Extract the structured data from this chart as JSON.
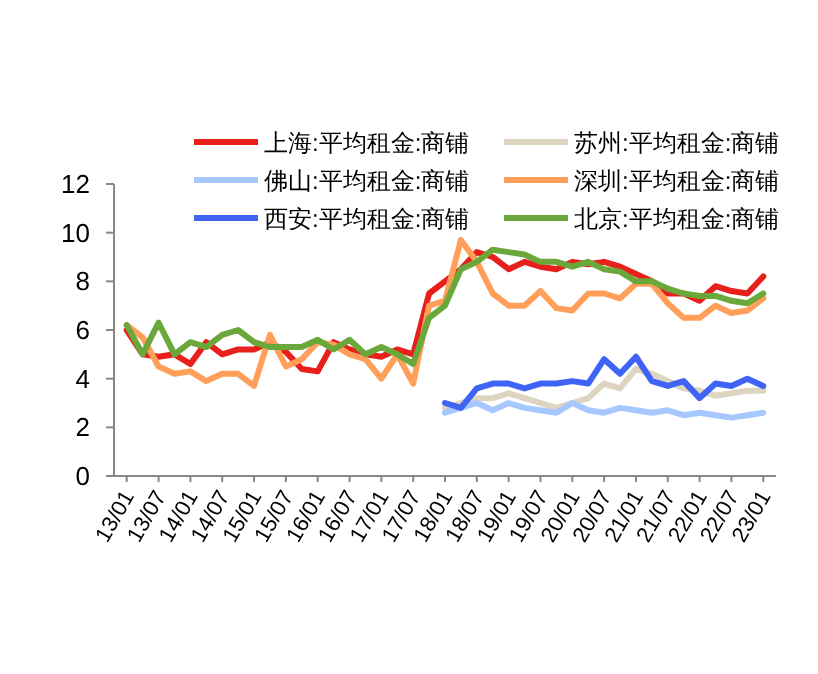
{
  "chart_data": {
    "type": "line",
    "legend": "top",
    "grid": false,
    "line_style": "solid",
    "marker": "none",
    "ylim": [
      0,
      12
    ],
    "yticks": [
      0,
      2,
      4,
      6,
      8,
      10,
      12
    ],
    "categories": [
      "13/01",
      null,
      "13/07",
      null,
      "14/01",
      null,
      "14/07",
      null,
      "15/01",
      null,
      "15/07",
      null,
      "16/01",
      null,
      "16/07",
      null,
      "17/01",
      null,
      "17/07",
      null,
      "18/01",
      null,
      "18/07",
      null,
      "19/01",
      null,
      "19/07",
      null,
      "20/01",
      null,
      "20/07",
      null,
      "21/01",
      null,
      "21/07",
      null,
      "22/01",
      null,
      "22/07",
      null,
      "23/01"
    ],
    "series": [
      {
        "name": "上海:平均租金:商铺",
        "color": "#e8201b",
        "values": [
          6.0,
          5.0,
          4.9,
          5.0,
          4.6,
          5.5,
          5.0,
          5.2,
          5.2,
          5.5,
          5.1,
          4.4,
          4.3,
          5.5,
          5.2,
          5.0,
          4.9,
          5.2,
          5.0,
          7.5,
          8.0,
          8.5,
          9.2,
          9.0,
          8.5,
          8.8,
          8.6,
          8.5,
          8.8,
          8.7,
          8.8,
          8.6,
          8.3,
          8.0,
          7.5,
          7.5,
          7.2,
          7.8,
          7.6,
          7.5,
          8.2
        ]
      },
      {
        "name": "苏州:平均租金:商铺",
        "color": "#ddd5c0",
        "values": [
          null,
          null,
          null,
          null,
          null,
          null,
          null,
          null,
          null,
          null,
          null,
          null,
          null,
          null,
          null,
          null,
          null,
          null,
          null,
          null,
          2.8,
          3.0,
          3.2,
          3.2,
          3.4,
          3.2,
          3.0,
          2.8,
          3.0,
          3.2,
          3.8,
          3.6,
          4.4,
          4.2,
          3.9,
          3.6,
          3.5,
          3.3,
          3.4,
          3.5,
          3.5
        ]
      },
      {
        "name": "佛山:平均租金:商铺",
        "color": "#a6c8ff",
        "values": [
          null,
          null,
          null,
          null,
          null,
          null,
          null,
          null,
          null,
          null,
          null,
          null,
          null,
          null,
          null,
          null,
          null,
          null,
          null,
          null,
          2.6,
          2.8,
          3.0,
          2.7,
          3.0,
          2.8,
          2.7,
          2.6,
          3.0,
          2.7,
          2.6,
          2.8,
          2.7,
          2.6,
          2.7,
          2.5,
          2.6,
          2.5,
          2.4,
          2.5,
          2.6
        ]
      },
      {
        "name": "深圳:平均租金:商铺",
        "color": "#ff9f5a",
        "values": [
          6.2,
          5.7,
          4.5,
          4.2,
          4.3,
          3.9,
          4.2,
          4.2,
          3.7,
          5.8,
          4.5,
          4.8,
          5.5,
          5.4,
          5.0,
          4.8,
          4.0,
          5.0,
          3.8,
          7.0,
          7.2,
          9.7,
          8.8,
          7.5,
          7.0,
          7.0,
          7.6,
          6.9,
          6.8,
          7.5,
          7.5,
          7.3,
          7.9,
          7.9,
          7.1,
          6.5,
          6.5,
          7.0,
          6.7,
          6.8,
          7.3
        ]
      },
      {
        "name": "西安:平均租金:商铺",
        "color": "#3f63f5",
        "values": [
          null,
          null,
          null,
          null,
          null,
          null,
          null,
          null,
          null,
          null,
          null,
          null,
          null,
          null,
          null,
          null,
          null,
          null,
          null,
          null,
          3.0,
          2.8,
          3.6,
          3.8,
          3.8,
          3.6,
          3.8,
          3.8,
          3.9,
          3.8,
          4.8,
          4.2,
          4.9,
          3.9,
          3.7,
          3.9,
          3.2,
          3.8,
          3.7,
          4.0,
          3.7
        ]
      },
      {
        "name": "北京:平均租金:商铺",
        "color": "#6aa83c",
        "values": [
          6.2,
          5.0,
          6.3,
          5.0,
          5.5,
          5.3,
          5.8,
          6.0,
          5.5,
          5.3,
          5.3,
          5.3,
          5.6,
          5.2,
          5.6,
          5.0,
          5.3,
          5.0,
          4.6,
          6.5,
          7.0,
          8.5,
          8.8,
          9.3,
          9.2,
          9.1,
          8.8,
          8.8,
          8.6,
          8.8,
          8.5,
          8.4,
          8.0,
          8.0,
          7.7,
          7.5,
          7.4,
          7.4,
          7.2,
          7.1,
          7.5
        ]
      }
    ]
  }
}
